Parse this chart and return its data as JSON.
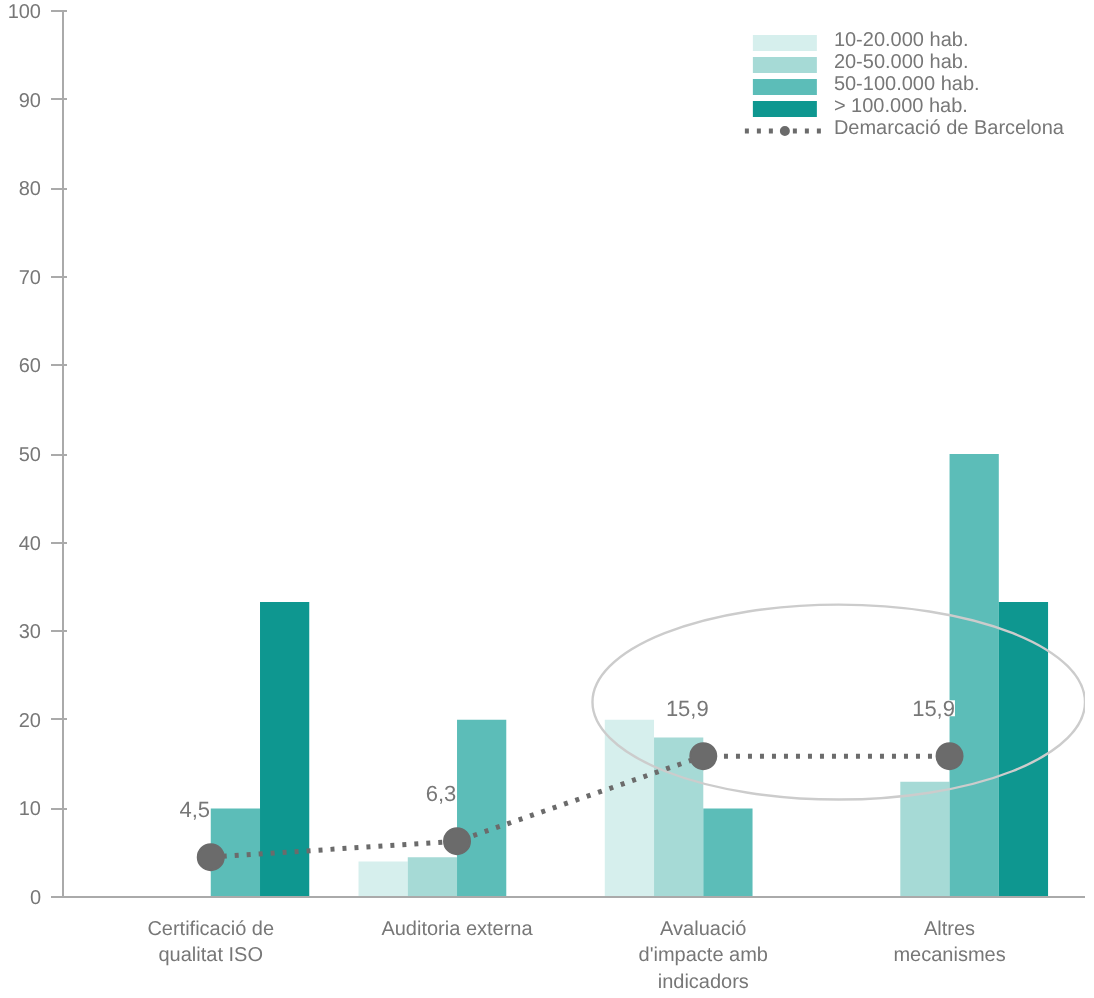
{
  "chart_data": {
    "type": "bar",
    "categories": [
      "Certificació de\nqualitat ISO",
      "Auditoria externa",
      "Avaluació\nd'impacte amb\nindicadors",
      "Altres\nmecanismes"
    ],
    "series": [
      {
        "name": "10-20.000 hab.",
        "color": "#d6efed",
        "values": [
          null,
          4,
          20,
          null
        ]
      },
      {
        "name": "20-50.000 hab.",
        "color": "#a6dad6",
        "values": [
          null,
          4.5,
          18,
          13
        ]
      },
      {
        "name": "50-100.000 hab.",
        "color": "#5cbdb8",
        "values": [
          10,
          20,
          10,
          50
        ]
      },
      {
        "name": "> 100.000 hab.",
        "color": "#0e9790",
        "values": [
          33.3,
          null,
          null,
          33.3
        ]
      },
      {
        "name": "Demarcació de Barcelona",
        "type": "line",
        "color": "#6b6b6b",
        "values": [
          4.5,
          6.3,
          15.9,
          15.9
        ],
        "value_labels": [
          "4,5",
          "6,3",
          "15,9",
          "15,9"
        ],
        "marker": "circle",
        "line_style": "dotted"
      }
    ],
    "ylim": [
      0,
      100
    ],
    "yticks": [
      0,
      10,
      20,
      30,
      40,
      50,
      60,
      70,
      80,
      90,
      100
    ],
    "grid": false,
    "legend": "top right"
  }
}
